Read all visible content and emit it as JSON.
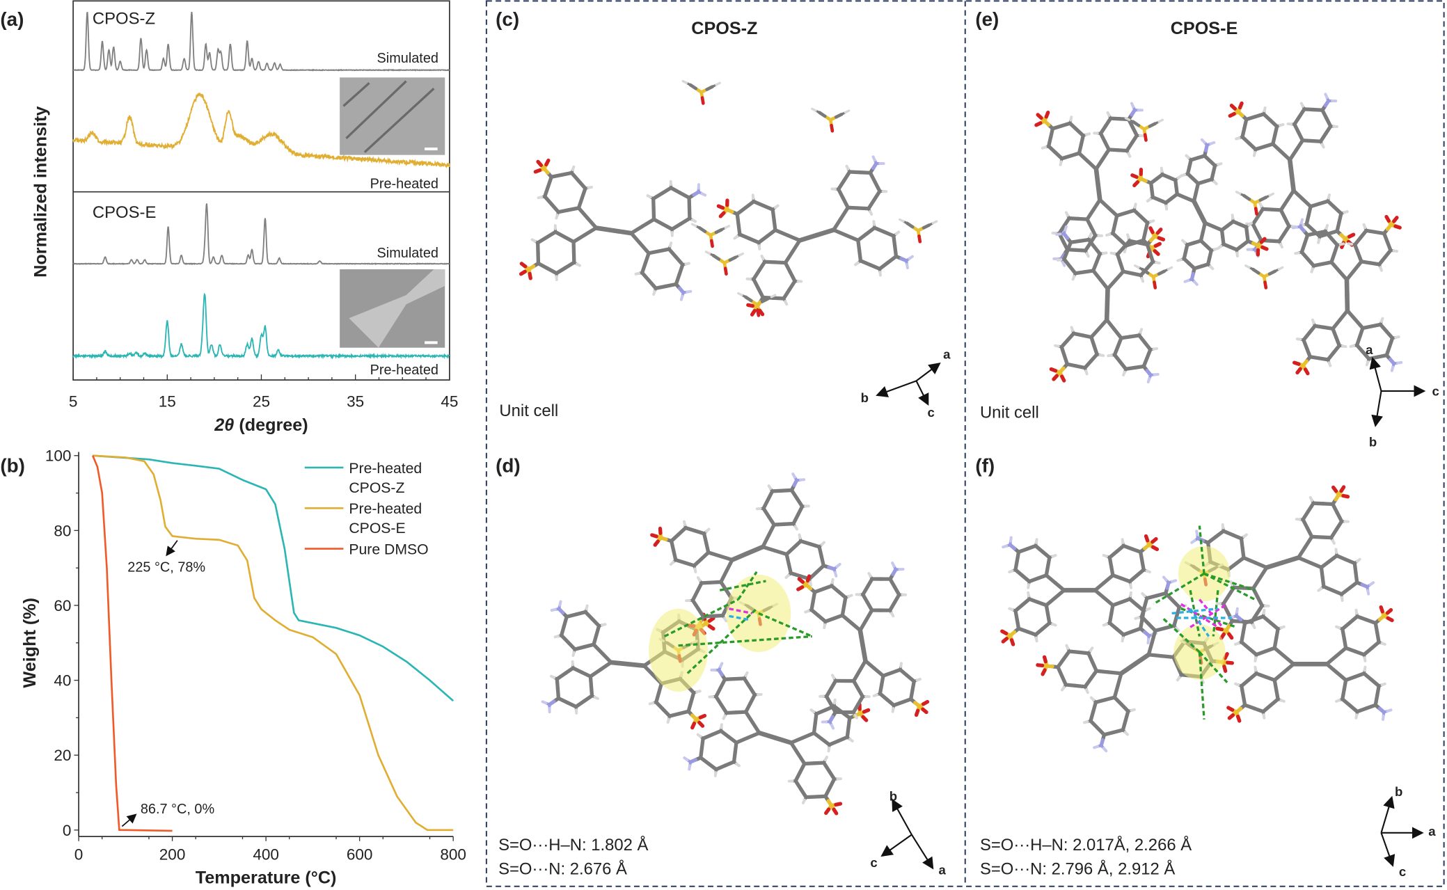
{
  "panels": {
    "a": "(a)",
    "b": "(b)",
    "c": "(c)",
    "d": "(d)",
    "e": "(e)",
    "f": "(f)"
  },
  "xrd": {
    "ylabel": "Normalized intensity",
    "xlabel_symbol": "2θ",
    "xlabel_unit": " (degree)",
    "group_z": "CPOS-Z",
    "group_e": "CPOS-E",
    "simulated": "Simulated",
    "preheated": "Pre-heated",
    "xticks": [
      "5",
      "15",
      "25",
      "35",
      "45"
    ]
  },
  "tga": {
    "ylabel": "Weight (%)",
    "xlabel": "Temperature (°C)",
    "xticks": [
      "0",
      "200",
      "400",
      "600",
      "800"
    ],
    "yticks": [
      "0",
      "20",
      "40",
      "60",
      "80",
      "100"
    ],
    "legend": [
      {
        "line1": "Pre-heated",
        "line2": "CPOS-Z",
        "color": "#2bb5b5"
      },
      {
        "line1": "Pre-heated",
        "line2": "CPOS-E",
        "color": "#e0ae32"
      },
      {
        "line1": "Pure DMSO",
        "line2": "",
        "color": "#f05a28"
      }
    ],
    "annotation1": "225 °C, 78%",
    "annotation2": "86.7 °C, 0%"
  },
  "crystal": {
    "title_z": "CPOS-Z",
    "title_e": "CPOS-E",
    "unit_cell": "Unit cell",
    "axis_a": "a",
    "axis_b": "b",
    "axis_c": "c",
    "d_hbond": "S=O···H–N: 1.802 Å",
    "d_so_n": "S=O···N: 2.676 Å",
    "f_hbond": "S=O···H–N: 2.017Å, 2.266 Å",
    "f_so_n": "S=O···N: 2.796 Å, 2.912 Å"
  },
  "chart_data": [
    {
      "type": "line",
      "title": "",
      "xlabel": "2θ (degree)",
      "ylabel": "Normalized intensity",
      "xlim": [
        5,
        45
      ],
      "xticks": [
        5,
        15,
        25,
        35,
        45
      ],
      "grid": false,
      "series": [
        {
          "name": "CPOS-Z Simulated",
          "color": "#808080",
          "peaks_2theta_intensity": [
            [
              6.5,
              1
            ],
            [
              8.1,
              0.5
            ],
            [
              8.8,
              0.35
            ],
            [
              9.3,
              0.4
            ],
            [
              10,
              0.15
            ],
            [
              12.2,
              0.55
            ],
            [
              12.8,
              0.35
            ],
            [
              14.6,
              0.2
            ],
            [
              15.1,
              0.45
            ],
            [
              16.8,
              0.2
            ],
            [
              17.6,
              1.0
            ],
            [
              19.1,
              0.45
            ],
            [
              19.5,
              0.3
            ],
            [
              20.4,
              0.35
            ],
            [
              20.7,
              0.3
            ],
            [
              21.7,
              0.45
            ],
            [
              23.5,
              0.5
            ],
            [
              24,
              0.2
            ],
            [
              24.7,
              0.15
            ],
            [
              25.6,
              0.12
            ],
            [
              26.4,
              0.12
            ],
            [
              27,
              0.1
            ]
          ]
        },
        {
          "name": "CPOS-Z Pre-heated",
          "color": "#e0ae32",
          "peaks_2theta_intensity": [
            [
              7,
              0.15
            ],
            [
              11,
              0.45
            ],
            [
              18,
              0.55
            ],
            [
              19,
              0.5
            ],
            [
              21.5,
              0.55
            ],
            [
              22.7,
              0.25
            ],
            [
              25.5,
              0.2
            ],
            [
              26.7,
              0.2
            ]
          ]
        },
        {
          "name": "CPOS-E Simulated",
          "color": "#808080",
          "peaks_2theta_intensity": [
            [
              8.4,
              0.12
            ],
            [
              11.2,
              0.07
            ],
            [
              11.8,
              0.07
            ],
            [
              12.6,
              0.07
            ],
            [
              15.1,
              0.65
            ],
            [
              16.5,
              0.15
            ],
            [
              19.0,
              0.2
            ],
            [
              19.2,
              1.0
            ],
            [
              19.9,
              0.12
            ],
            [
              20.8,
              0.15
            ],
            [
              23.6,
              0.15
            ],
            [
              24,
              0.25
            ],
            [
              25.4,
              0.8
            ],
            [
              26.9,
              0.1
            ],
            [
              31.2,
              0.05
            ]
          ]
        },
        {
          "name": "CPOS-E Pre-heated",
          "color": "#2bb5b5",
          "peaks_2theta_intensity": [
            [
              8.4,
              0.08
            ],
            [
              11,
              0.05
            ],
            [
              11.7,
              0.06
            ],
            [
              12.6,
              0.05
            ],
            [
              15,
              0.6
            ],
            [
              16.5,
              0.2
            ],
            [
              18.8,
              0.25
            ],
            [
              19,
              0.95
            ],
            [
              19.7,
              0.2
            ],
            [
              20.6,
              0.2
            ],
            [
              23.5,
              0.2
            ],
            [
              24,
              0.3
            ],
            [
              25,
              0.35
            ],
            [
              25.4,
              0.5
            ],
            [
              26.8,
              0.1
            ]
          ]
        }
      ]
    },
    {
      "type": "line",
      "title": "",
      "xlabel": "Temperature (°C)",
      "ylabel": "Weight (%)",
      "xlim": [
        0,
        800
      ],
      "ylim": [
        0,
        100
      ],
      "legend_position": "top-right",
      "grid": false,
      "series": [
        {
          "name": "Pre-heated CPOS-Z",
          "color": "#2bb5b5",
          "x": [
            30,
            150,
            200,
            250,
            300,
            350,
            400,
            420,
            440,
            460,
            470,
            550,
            600,
            650,
            700,
            750,
            800
          ],
          "y": [
            100,
            99,
            98,
            97.3,
            96.5,
            93.5,
            91,
            87,
            75,
            58,
            56,
            54,
            52,
            49,
            45,
            40,
            34.5
          ]
        },
        {
          "name": "Pre-heated CPOS-E",
          "color": "#e0ae32",
          "x": [
            30,
            100,
            140,
            160,
            175,
            185,
            200,
            250,
            300,
            340,
            360,
            375,
            390,
            420,
            450,
            500,
            550,
            600,
            640,
            680,
            720,
            745,
            800
          ],
          "y": [
            100,
            99.5,
            98.5,
            95,
            88,
            81,
            78.5,
            77.8,
            77.5,
            76,
            72,
            62,
            59,
            56,
            53.5,
            51.5,
            47,
            36,
            20,
            9,
            2,
            0,
            0
          ]
        },
        {
          "name": "Pure DMSO",
          "color": "#f05a28",
          "x": [
            30,
            40,
            50,
            60,
            70,
            80,
            86.7,
            100,
            200
          ],
          "y": [
            100,
            97,
            90,
            70,
            40,
            12,
            0,
            0,
            -0.2
          ]
        }
      ],
      "annotations": [
        {
          "text": "225 °C, 78%",
          "x": 225,
          "y": 78
        },
        {
          "text": "86.7 °C, 0%",
          "x": 86.7,
          "y": 0
        }
      ]
    }
  ]
}
